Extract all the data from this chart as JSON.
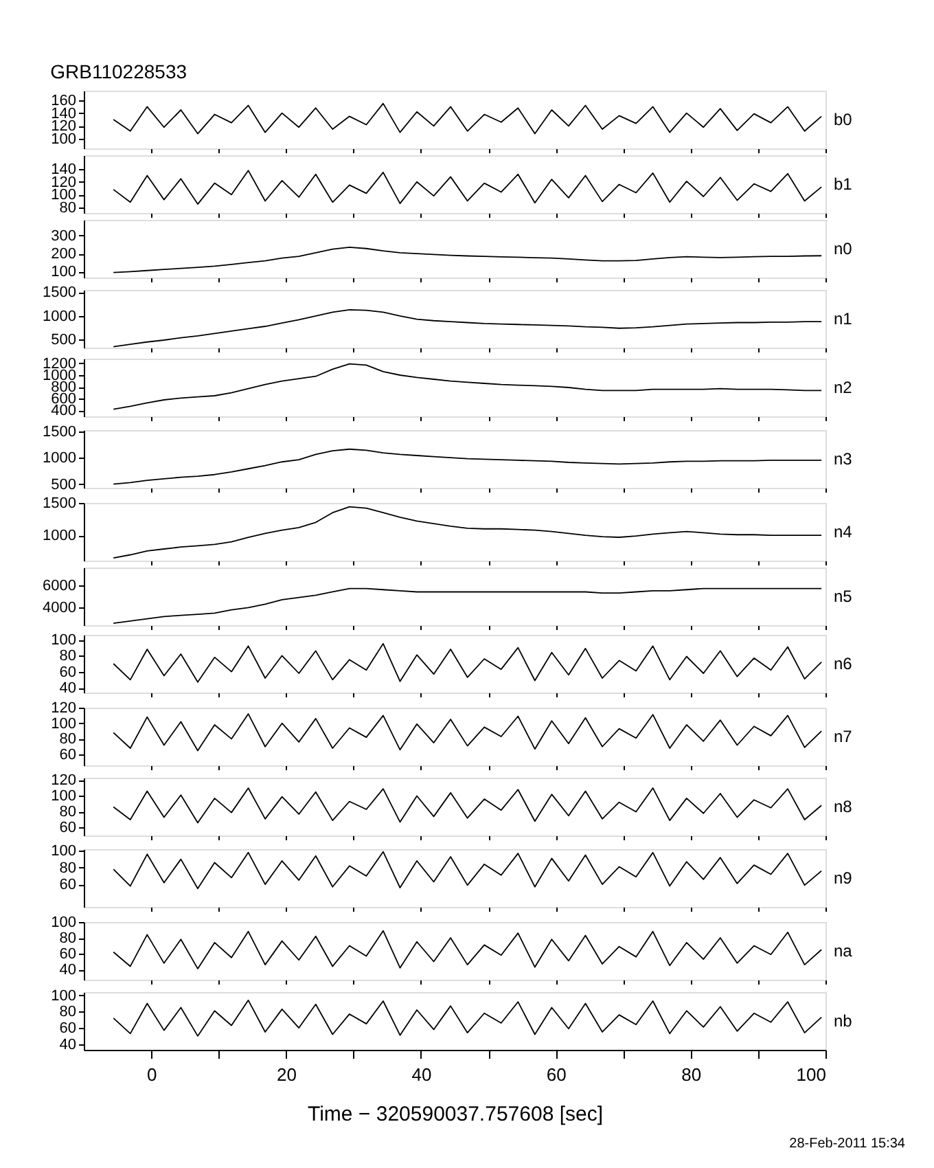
{
  "chart_data": [
    {
      "type": "line",
      "title": "GRB110228533",
      "xlim": [
        -10,
        100
      ],
      "xticks": [
        0,
        {
          "value": 10,
          "label": null
        },
        20,
        {
          "value": 30,
          "label": null
        },
        40,
        {
          "value": 50,
          "label": null
        },
        60,
        {
          "value": 70,
          "label": null
        },
        80,
        {
          "value": 90,
          "label": null
        },
        100
      ],
      "ylim": [
        85,
        175
      ],
      "yticks": [
        100,
        120,
        140,
        160
      ],
      "tick_labels": "y",
      "legend": false,
      "marker": "none",
      "x": [
        -5.6,
        -3.1,
        -0.6,
        1.9,
        4.4,
        6.9,
        9.4,
        11.9,
        14.4,
        16.9,
        19.4,
        21.9,
        24.4,
        26.9,
        29.4,
        31.9,
        34.4,
        36.9,
        39.4,
        41.9,
        44.4,
        46.9,
        49.4,
        51.9,
        54.4,
        56.9,
        59.4,
        61.9,
        64.4,
        66.9,
        69.4,
        71.9,
        74.4,
        76.9,
        79.4,
        81.9,
        84.4,
        86.9,
        89.4,
        91.9,
        94.4,
        96.9,
        99.4
      ],
      "series": [
        {
          "name": "b0",
          "color": "#000000",
          "values": [
            130,
            112,
            150,
            118,
            145,
            108,
            138,
            125,
            152,
            110,
            140,
            118,
            148,
            115,
            135,
            122,
            155,
            110,
            142,
            120,
            150,
            112,
            138,
            126,
            148,
            108,
            145,
            120,
            152,
            115,
            136,
            124,
            150,
            110,
            140,
            118,
            147,
            113,
            139,
            125,
            150,
            112,
            135
          ]
        }
      ]
    },
    {
      "type": "line",
      "xlim": [
        -10,
        100
      ],
      "xticks": [
        0,
        {
          "value": 10,
          "label": null
        },
        20,
        {
          "value": 30,
          "label": null
        },
        40,
        {
          "value": 50,
          "label": null
        },
        60,
        {
          "value": 70,
          "label": null
        },
        80,
        {
          "value": 90,
          "label": null
        },
        100
      ],
      "ylim": [
        71,
        162
      ],
      "yticks": [
        80,
        100,
        120,
        140
      ],
      "tick_labels": "y",
      "legend": false,
      "marker": "none",
      "x": [
        -5.6,
        -3.1,
        -0.6,
        1.9,
        4.4,
        6.9,
        9.4,
        11.9,
        14.4,
        16.9,
        19.4,
        21.9,
        24.4,
        26.9,
        29.4,
        31.9,
        34.4,
        36.9,
        39.4,
        41.9,
        44.4,
        46.9,
        49.4,
        51.9,
        54.4,
        56.9,
        59.4,
        61.9,
        64.4,
        66.9,
        69.4,
        71.9,
        74.4,
        76.9,
        79.4,
        81.9,
        84.4,
        86.9,
        89.4,
        91.9,
        94.4,
        96.9,
        99.4
      ],
      "series": [
        {
          "name": "b1",
          "color": "#000000",
          "values": [
            108,
            88,
            130,
            92,
            125,
            85,
            118,
            100,
            138,
            90,
            122,
            96,
            132,
            88,
            115,
            102,
            135,
            86,
            120,
            98,
            128,
            90,
            118,
            104,
            132,
            87,
            124,
            95,
            130,
            89,
            116,
            103,
            134,
            88,
            121,
            97,
            127,
            91,
            117,
            105,
            133,
            90,
            112
          ]
        }
      ]
    },
    {
      "type": "line",
      "xlim": [
        -10,
        100
      ],
      "xticks": [
        0,
        {
          "value": 10,
          "label": null
        },
        20,
        {
          "value": 30,
          "label": null
        },
        40,
        {
          "value": 50,
          "label": null
        },
        60,
        {
          "value": 70,
          "label": null
        },
        80,
        {
          "value": 90,
          "label": null
        },
        100
      ],
      "ylim": [
        67,
        387
      ],
      "yticks": [
        100,
        200,
        300
      ],
      "tick_labels": "y",
      "legend": false,
      "marker": "none",
      "x": [
        -5.6,
        -3.1,
        -0.6,
        1.9,
        4.4,
        6.9,
        9.4,
        11.9,
        14.4,
        16.9,
        19.4,
        21.9,
        24.4,
        26.9,
        29.4,
        31.9,
        34.4,
        36.9,
        39.4,
        41.9,
        44.4,
        46.9,
        49.4,
        51.9,
        54.4,
        56.9,
        59.4,
        61.9,
        64.4,
        66.9,
        69.4,
        71.9,
        74.4,
        76.9,
        79.4,
        81.9,
        84.4,
        86.9,
        89.4,
        91.9,
        94.4,
        96.9,
        99.4
      ],
      "series": [
        {
          "name": "n0",
          "color": "#000000",
          "values": [
            95,
            100,
            106,
            112,
            118,
            124,
            130,
            140,
            150,
            160,
            175,
            185,
            205,
            225,
            235,
            228,
            215,
            205,
            200,
            195,
            190,
            187,
            185,
            182,
            180,
            177,
            175,
            170,
            165,
            160,
            160,
            162,
            170,
            178,
            183,
            180,
            178,
            180,
            183,
            185,
            185,
            187,
            188
          ]
        }
      ]
    },
    {
      "type": "line",
      "xlim": [
        -10,
        100
      ],
      "xticks": [
        0,
        {
          "value": 10,
          "label": null
        },
        20,
        {
          "value": 30,
          "label": null
        },
        40,
        {
          "value": 50,
          "label": null
        },
        60,
        {
          "value": 70,
          "label": null
        },
        80,
        {
          "value": 90,
          "label": null
        },
        100
      ],
      "ylim": [
        330,
        1550
      ],
      "yticks": [
        500,
        1000,
        1500
      ],
      "tick_labels": "y",
      "legend": false,
      "marker": "none",
      "x": [
        -5.6,
        -3.1,
        -0.6,
        1.9,
        4.4,
        6.9,
        9.4,
        11.9,
        14.4,
        16.9,
        19.4,
        21.9,
        24.4,
        26.9,
        29.4,
        31.9,
        34.4,
        36.9,
        39.4,
        41.9,
        44.4,
        46.9,
        49.4,
        51.9,
        54.4,
        56.9,
        59.4,
        61.9,
        64.4,
        66.9,
        69.4,
        71.9,
        74.4,
        76.9,
        79.4,
        81.9,
        84.4,
        86.9,
        89.4,
        91.9,
        94.4,
        96.9,
        99.4
      ],
      "series": [
        {
          "name": "n1",
          "color": "#000000",
          "values": [
            350,
            400,
            450,
            490,
            540,
            580,
            630,
            680,
            730,
            780,
            850,
            920,
            1000,
            1080,
            1130,
            1120,
            1080,
            1000,
            930,
            900,
            880,
            860,
            840,
            830,
            820,
            810,
            800,
            790,
            770,
            760,
            740,
            750,
            770,
            800,
            830,
            840,
            850,
            860,
            860,
            870,
            870,
            880,
            880
          ]
        }
      ]
    },
    {
      "type": "line",
      "xlim": [
        -10,
        100
      ],
      "xticks": [
        0,
        {
          "value": 10,
          "label": null
        },
        20,
        {
          "value": 30,
          "label": null
        },
        40,
        {
          "value": 50,
          "label": null
        },
        60,
        {
          "value": 70,
          "label": null
        },
        80,
        {
          "value": 90,
          "label": null
        },
        100
      ],
      "ylim": [
        300,
        1280
      ],
      "yticks": [
        400,
        600,
        800,
        1000,
        1200
      ],
      "tick_labels": "y",
      "legend": false,
      "marker": "none",
      "x": [
        -5.6,
        -3.1,
        -0.6,
        1.9,
        4.4,
        6.9,
        9.4,
        11.9,
        14.4,
        16.9,
        19.4,
        21.9,
        24.4,
        26.9,
        29.4,
        31.9,
        34.4,
        36.9,
        39.4,
        41.9,
        44.4,
        46.9,
        49.4,
        51.9,
        54.4,
        56.9,
        59.4,
        61.9,
        64.4,
        66.9,
        69.4,
        71.9,
        74.4,
        76.9,
        79.4,
        81.9,
        84.4,
        86.9,
        89.4,
        91.9,
        94.4,
        96.9,
        99.4
      ],
      "series": [
        {
          "name": "n2",
          "color": "#000000",
          "values": [
            420,
            470,
            530,
            580,
            610,
            630,
            650,
            700,
            770,
            840,
            900,
            940,
            980,
            1100,
            1190,
            1170,
            1060,
            1000,
            960,
            930,
            900,
            880,
            860,
            840,
            830,
            820,
            810,
            790,
            760,
            740,
            740,
            740,
            760,
            760,
            760,
            760,
            770,
            760,
            760,
            760,
            750,
            740,
            740
          ]
        }
      ]
    },
    {
      "type": "line",
      "xlim": [
        -10,
        100
      ],
      "xticks": [
        0,
        {
          "value": 10,
          "label": null
        },
        20,
        {
          "value": 30,
          "label": null
        },
        40,
        {
          "value": 50,
          "label": null
        },
        60,
        {
          "value": 70,
          "label": null
        },
        80,
        {
          "value": 90,
          "label": null
        },
        100
      ],
      "ylim": [
        430,
        1520
      ],
      "yticks": [
        500,
        1000,
        1500
      ],
      "tick_labels": "y",
      "legend": false,
      "marker": "none",
      "x": [
        -5.6,
        -3.1,
        -0.6,
        1.9,
        4.4,
        6.9,
        9.4,
        11.9,
        14.4,
        16.9,
        19.4,
        21.9,
        24.4,
        26.9,
        29.4,
        31.9,
        34.4,
        36.9,
        39.4,
        41.9,
        44.4,
        46.9,
        49.4,
        51.9,
        54.4,
        56.9,
        59.4,
        61.9,
        64.4,
        66.9,
        69.4,
        71.9,
        74.4,
        76.9,
        79.4,
        81.9,
        84.4,
        86.9,
        89.4,
        91.9,
        94.4,
        96.9,
        99.4
      ],
      "series": [
        {
          "name": "n3",
          "color": "#000000",
          "values": [
            500,
            530,
            570,
            600,
            630,
            650,
            680,
            730,
            790,
            850,
            920,
            960,
            1060,
            1130,
            1160,
            1140,
            1090,
            1060,
            1040,
            1020,
            1000,
            980,
            970,
            960,
            950,
            940,
            930,
            910,
            900,
            890,
            880,
            890,
            900,
            920,
            930,
            930,
            940,
            940,
            940,
            950,
            950,
            950,
            950
          ]
        }
      ]
    },
    {
      "type": "line",
      "xlim": [
        -10,
        100
      ],
      "xticks": [
        0,
        {
          "value": 10,
          "label": null
        },
        20,
        {
          "value": 30,
          "label": null
        },
        40,
        {
          "value": 50,
          "label": null
        },
        60,
        {
          "value": 70,
          "label": null
        },
        80,
        {
          "value": 90,
          "label": null
        },
        100
      ],
      "ylim": [
        610,
        1500
      ],
      "yticks": [
        1000,
        1500
      ],
      "tick_labels": "y",
      "legend": false,
      "marker": "none",
      "x": [
        -5.6,
        -3.1,
        -0.6,
        1.9,
        4.4,
        6.9,
        9.4,
        11.9,
        14.4,
        16.9,
        19.4,
        21.9,
        24.4,
        26.9,
        29.4,
        31.9,
        34.4,
        36.9,
        39.4,
        41.9,
        44.4,
        46.9,
        49.4,
        51.9,
        54.4,
        56.9,
        59.4,
        61.9,
        64.4,
        66.9,
        69.4,
        71.9,
        74.4,
        76.9,
        79.4,
        81.9,
        84.4,
        86.9,
        89.4,
        91.9,
        94.4,
        96.9,
        99.4
      ],
      "series": [
        {
          "name": "n4",
          "color": "#000000",
          "values": [
            650,
            700,
            760,
            790,
            820,
            840,
            860,
            900,
            970,
            1030,
            1080,
            1120,
            1200,
            1350,
            1440,
            1420,
            1350,
            1280,
            1220,
            1180,
            1140,
            1110,
            1100,
            1100,
            1090,
            1080,
            1060,
            1030,
            1000,
            980,
            970,
            990,
            1020,
            1040,
            1060,
            1040,
            1020,
            1010,
            1010,
            1000,
            1000,
            1000,
            1000
          ]
        }
      ]
    },
    {
      "type": "line",
      "xlim": [
        -10,
        100
      ],
      "xticks": [
        0,
        {
          "value": 10,
          "label": null
        },
        20,
        {
          "value": 30,
          "label": null
        },
        40,
        {
          "value": 50,
          "label": null
        },
        60,
        {
          "value": 70,
          "label": null
        },
        80,
        {
          "value": 90,
          "label": null
        },
        100
      ],
      "ylim": [
        2420,
        7580
      ],
      "yticks": [
        4000,
        6000
      ],
      "tick_labels": "y",
      "legend": false,
      "marker": "none",
      "x": [
        -5.6,
        -3.1,
        -0.6,
        1.9,
        4.4,
        6.9,
        9.4,
        11.9,
        14.4,
        16.9,
        19.4,
        21.9,
        24.4,
        26.9,
        29.4,
        31.9,
        34.4,
        36.9,
        39.4,
        41.9,
        44.4,
        46.9,
        49.4,
        51.9,
        54.4,
        56.9,
        59.4,
        61.9,
        64.4,
        66.9,
        69.4,
        71.9,
        74.4,
        76.9,
        79.4,
        81.9,
        84.4,
        86.9,
        89.4,
        91.9,
        94.4,
        96.9,
        99.4
      ],
      "series": [
        {
          "name": "n5",
          "color": "#000000",
          "values": [
            2600,
            2800,
            3000,
            3200,
            3300,
            3400,
            3500,
            3800,
            4000,
            4300,
            4700,
            4900,
            5100,
            5400,
            5700,
            5700,
            5600,
            5500,
            5400,
            5400,
            5400,
            5400,
            5400,
            5400,
            5400,
            5400,
            5400,
            5400,
            5400,
            5300,
            5300,
            5400,
            5500,
            5500,
            5600,
            5700,
            5700,
            5700,
            5700,
            5700,
            5700,
            5700,
            5700
          ]
        }
      ]
    },
    {
      "type": "line",
      "xlim": [
        -10,
        100
      ],
      "xticks": [
        0,
        {
          "value": 10,
          "label": null
        },
        20,
        {
          "value": 30,
          "label": null
        },
        40,
        {
          "value": 50,
          "label": null
        },
        60,
        {
          "value": 70,
          "label": null
        },
        80,
        {
          "value": 90,
          "label": null
        },
        100
      ],
      "ylim": [
        34,
        106
      ],
      "yticks": [
        40,
        60,
        80,
        100
      ],
      "tick_labels": "y",
      "legend": false,
      "marker": "none",
      "x": [
        -5.6,
        -3.1,
        -0.6,
        1.9,
        4.4,
        6.9,
        9.4,
        11.9,
        14.4,
        16.9,
        19.4,
        21.9,
        24.4,
        26.9,
        29.4,
        31.9,
        34.4,
        36.9,
        39.4,
        41.9,
        44.4,
        46.9,
        49.4,
        51.9,
        54.4,
        56.9,
        59.4,
        61.9,
        64.4,
        66.9,
        69.4,
        71.9,
        74.4,
        76.9,
        79.4,
        81.9,
        84.4,
        86.9,
        89.4,
        91.9,
        94.4,
        96.9,
        99.4
      ],
      "series": [
        {
          "name": "n6",
          "color": "#000000",
          "values": [
            70,
            50,
            88,
            55,
            82,
            47,
            78,
            60,
            92,
            52,
            80,
            58,
            86,
            50,
            75,
            62,
            95,
            48,
            81,
            57,
            88,
            53,
            76,
            63,
            90,
            49,
            84,
            56,
            89,
            52,
            74,
            61,
            92,
            50,
            79,
            58,
            86,
            54,
            77,
            62,
            91,
            51,
            72
          ]
        }
      ]
    },
    {
      "type": "line",
      "xlim": [
        -10,
        100
      ],
      "xticks": [
        0,
        {
          "value": 10,
          "label": null
        },
        20,
        {
          "value": 30,
          "label": null
        },
        40,
        {
          "value": 50,
          "label": null
        },
        60,
        {
          "value": 70,
          "label": null
        },
        80,
        {
          "value": 90,
          "label": null
        },
        100
      ],
      "ylim": [
        46,
        120
      ],
      "yticks": [
        60,
        80,
        100,
        120
      ],
      "tick_labels": "y",
      "legend": false,
      "marker": "none",
      "x": [
        -5.6,
        -3.1,
        -0.6,
        1.9,
        4.4,
        6.9,
        9.4,
        11.9,
        14.4,
        16.9,
        19.4,
        21.9,
        24.4,
        26.9,
        29.4,
        31.9,
        34.4,
        36.9,
        39.4,
        41.9,
        44.4,
        46.9,
        49.4,
        51.9,
        54.4,
        56.9,
        59.4,
        61.9,
        64.4,
        66.9,
        69.4,
        71.9,
        74.4,
        76.9,
        79.4,
        81.9,
        84.4,
        86.9,
        89.4,
        91.9,
        94.4,
        96.9,
        99.4
      ],
      "series": [
        {
          "name": "n7",
          "color": "#000000",
          "values": [
            88,
            68,
            108,
            72,
            102,
            65,
            98,
            80,
            112,
            70,
            100,
            76,
            106,
            68,
            94,
            82,
            110,
            66,
            99,
            75,
            105,
            71,
            95,
            83,
            109,
            67,
            103,
            74,
            107,
            70,
            93,
            81,
            111,
            68,
            98,
            77,
            104,
            72,
            96,
            84,
            110,
            69,
            90
          ]
        }
      ]
    },
    {
      "type": "line",
      "xlim": [
        -10,
        100
      ],
      "xticks": [
        0,
        {
          "value": 10,
          "label": null
        },
        20,
        {
          "value": 30,
          "label": null
        },
        40,
        {
          "value": 50,
          "label": null
        },
        60,
        {
          "value": 70,
          "label": null
        },
        80,
        {
          "value": 90,
          "label": null
        },
        100
      ],
      "ylim": [
        50,
        123
      ],
      "yticks": [
        60,
        80,
        100,
        120
      ],
      "tick_labels": "y",
      "legend": false,
      "marker": "none",
      "x": [
        -5.6,
        -3.1,
        -0.6,
        1.9,
        4.4,
        6.9,
        9.4,
        11.9,
        14.4,
        16.9,
        19.4,
        21.9,
        24.4,
        26.9,
        29.4,
        31.9,
        34.4,
        36.9,
        39.4,
        41.9,
        44.4,
        46.9,
        49.4,
        51.9,
        54.4,
        56.9,
        59.4,
        61.9,
        64.4,
        66.9,
        69.4,
        71.9,
        74.4,
        76.9,
        79.4,
        81.9,
        84.4,
        86.9,
        89.4,
        91.9,
        94.4,
        96.9,
        99.4
      ],
      "series": [
        {
          "name": "n8",
          "color": "#000000",
          "values": [
            86,
            70,
            106,
            73,
            101,
            66,
            97,
            79,
            110,
            71,
            99,
            77,
            105,
            69,
            93,
            83,
            109,
            67,
            100,
            74,
            104,
            72,
            96,
            82,
            108,
            68,
            102,
            75,
            106,
            71,
            92,
            80,
            110,
            69,
            97,
            78,
            103,
            73,
            95,
            85,
            109,
            70,
            88
          ]
        }
      ]
    },
    {
      "type": "line",
      "xlim": [
        -10,
        100
      ],
      "xticks": [
        0,
        {
          "value": 10,
          "label": null
        },
        20,
        {
          "value": 30,
          "label": null
        },
        40,
        {
          "value": 50,
          "label": null
        },
        60,
        {
          "value": 70,
          "label": null
        },
        80,
        {
          "value": 90,
          "label": null
        },
        100
      ],
      "ylim": [
        33,
        102
      ],
      "yticks": [
        60,
        80,
        100
      ],
      "tick_labels": "y",
      "legend": false,
      "marker": "none",
      "x": [
        -5.6,
        -3.1,
        -0.6,
        1.9,
        4.4,
        6.9,
        9.4,
        11.9,
        14.4,
        16.9,
        19.4,
        21.9,
        24.4,
        26.9,
        29.4,
        31.9,
        34.4,
        36.9,
        39.4,
        41.9,
        44.4,
        46.9,
        49.4,
        51.9,
        54.4,
        56.9,
        59.4,
        61.9,
        64.4,
        66.9,
        69.4,
        71.9,
        74.4,
        76.9,
        79.4,
        81.9,
        84.4,
        86.9,
        89.4,
        91.9,
        94.4,
        96.9,
        99.4
      ],
      "series": [
        {
          "name": "n9",
          "color": "#000000",
          "values": [
            78,
            58,
            96,
            62,
            90,
            55,
            86,
            68,
            98,
            60,
            88,
            65,
            94,
            57,
            82,
            70,
            99,
            56,
            88,
            63,
            93,
            59,
            84,
            71,
            97,
            57,
            91,
            64,
            95,
            60,
            81,
            69,
            98,
            58,
            87,
            66,
            92,
            61,
            83,
            72,
            97,
            59,
            76
          ]
        }
      ]
    },
    {
      "type": "line",
      "xlim": [
        -10,
        100
      ],
      "xticks": [
        0,
        {
          "value": 10,
          "label": null
        },
        20,
        {
          "value": 30,
          "label": null
        },
        40,
        {
          "value": 50,
          "label": null
        },
        60,
        {
          "value": 70,
          "label": null
        },
        80,
        {
          "value": 90,
          "label": null
        },
        100
      ],
      "ylim": [
        27,
        100
      ],
      "yticks": [
        40,
        60,
        80,
        100
      ],
      "tick_labels": "y",
      "legend": false,
      "marker": "none",
      "x": [
        -5.6,
        -3.1,
        -0.6,
        1.9,
        4.4,
        6.9,
        9.4,
        11.9,
        14.4,
        16.9,
        19.4,
        21.9,
        24.4,
        26.9,
        29.4,
        31.9,
        34.4,
        36.9,
        39.4,
        41.9,
        44.4,
        46.9,
        49.4,
        51.9,
        54.4,
        56.9,
        59.4,
        61.9,
        64.4,
        66.9,
        69.4,
        71.9,
        74.4,
        76.9,
        79.4,
        81.9,
        84.4,
        86.9,
        89.4,
        91.9,
        94.4,
        96.9,
        99.4
      ],
      "series": [
        {
          "name": "na",
          "color": "#000000",
          "values": [
            62,
            44,
            84,
            48,
            78,
            41,
            74,
            55,
            88,
            46,
            76,
            52,
            82,
            44,
            70,
            57,
            89,
            42,
            75,
            50,
            80,
            46,
            71,
            58,
            86,
            43,
            78,
            51,
            83,
            47,
            69,
            56,
            88,
            45,
            74,
            53,
            80,
            48,
            70,
            59,
            87,
            46,
            65
          ]
        }
      ]
    },
    {
      "type": "line",
      "xlabel": "Time − 320590037.757608 [sec]",
      "annotations": [
        "28-Feb-2011 15:34"
      ],
      "xlim": [
        -10,
        100
      ],
      "xticks": [
        0,
        {
          "value": 10,
          "label": null
        },
        20,
        {
          "value": 30,
          "label": null
        },
        40,
        {
          "value": 50,
          "label": null
        },
        60,
        {
          "value": 70,
          "label": null
        },
        80,
        {
          "value": 90,
          "label": null
        },
        100
      ],
      "ylim": [
        33,
        104
      ],
      "yticks": [
        40,
        60,
        80,
        100
      ],
      "legend": false,
      "marker": "none",
      "x": [
        -5.6,
        -3.1,
        -0.6,
        1.9,
        4.4,
        6.9,
        9.4,
        11.9,
        14.4,
        16.9,
        19.4,
        21.9,
        24.4,
        26.9,
        29.4,
        31.9,
        34.4,
        36.9,
        39.4,
        41.9,
        44.4,
        46.9,
        49.4,
        51.9,
        54.4,
        56.9,
        59.4,
        61.9,
        64.4,
        66.9,
        69.4,
        71.9,
        74.4,
        76.9,
        79.4,
        81.9,
        84.4,
        86.9,
        89.4,
        91.9,
        94.4,
        96.9,
        99.4
      ],
      "series": [
        {
          "name": "nb",
          "color": "#000000",
          "values": [
            72,
            53,
            90,
            57,
            85,
            50,
            81,
            63,
            94,
            55,
            83,
            60,
            89,
            52,
            77,
            65,
            93,
            51,
            82,
            58,
            87,
            54,
            78,
            66,
            92,
            52,
            85,
            59,
            90,
            55,
            76,
            64,
            93,
            53,
            81,
            61,
            86,
            56,
            78,
            67,
            92,
            54,
            73
          ]
        }
      ]
    }
  ]
}
